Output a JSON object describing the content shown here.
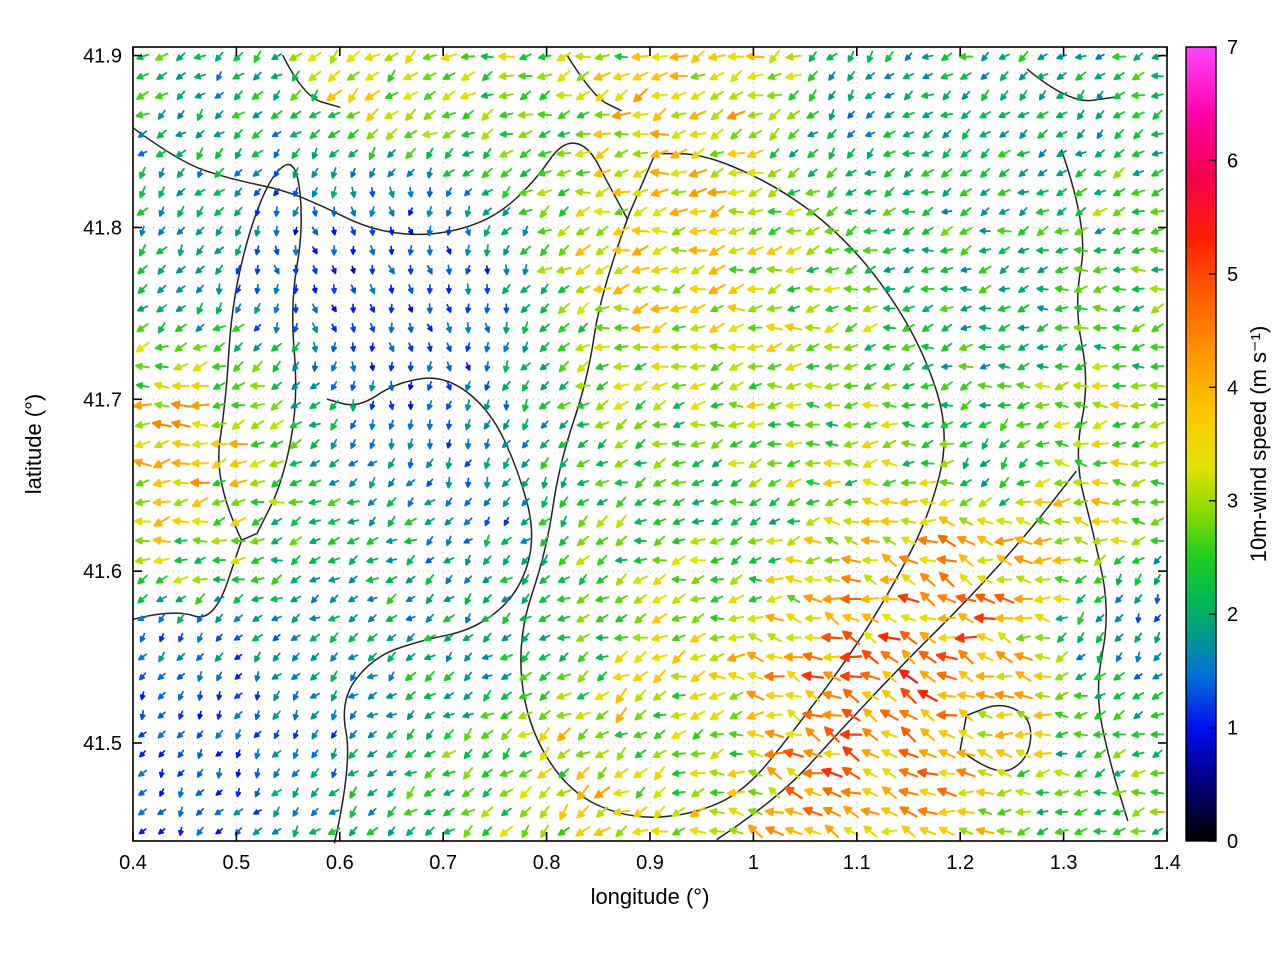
{
  "figure": {
    "background": "#ffffff"
  },
  "chart_data": {
    "type": "quiver",
    "title": "",
    "xlabel": "longitude (°)",
    "ylabel": "latitude (°)",
    "xlim": [
      0.4,
      1.4
    ],
    "ylim": [
      41.443,
      41.905
    ],
    "x_ticks": [
      0.4,
      0.5,
      0.6,
      0.7,
      0.8,
      0.9,
      1.0,
      1.1,
      1.2,
      1.3,
      1.4
    ],
    "x_tick_labels": [
      "0.4",
      "0.5",
      "0.6",
      "0.7",
      "0.8",
      "0.9",
      "1",
      "1.1",
      "1.2",
      "1.3",
      "1.4"
    ],
    "y_ticks": [
      41.5,
      41.6,
      41.7,
      41.8,
      41.9
    ],
    "y_tick_labels": [
      "41.5",
      "41.6",
      "41.7",
      "41.8",
      "41.9"
    ],
    "grid": {
      "nx": 54,
      "ny": 41
    },
    "colorbar": {
      "label": "10m-wind speed (m s⁻¹)",
      "min": 0,
      "max": 7,
      "ticks": [
        0,
        1,
        2,
        3,
        4,
        5,
        6,
        7
      ],
      "tick_labels": [
        "0",
        "1",
        "2",
        "3",
        "4",
        "5",
        "6",
        "7"
      ],
      "stops": [
        [
          0.0,
          "#000000"
        ],
        [
          0.6,
          "#000090"
        ],
        [
          1.0,
          "#0010f0"
        ],
        [
          1.45,
          "#0070d8"
        ],
        [
          1.8,
          "#009890"
        ],
        [
          2.1,
          "#00b855"
        ],
        [
          2.5,
          "#20cc20"
        ],
        [
          2.9,
          "#86dc00"
        ],
        [
          3.3,
          "#e2e200"
        ],
        [
          3.8,
          "#ffc400"
        ],
        [
          4.3,
          "#ff9400"
        ],
        [
          4.8,
          "#ff5e00"
        ],
        [
          5.3,
          "#ff2000"
        ],
        [
          5.9,
          "#f30050"
        ],
        [
          6.4,
          "#ff00a8"
        ],
        [
          7.0,
          "#ff44ff"
        ]
      ]
    },
    "field": {
      "base_speed": 2.3,
      "base_dir": 188,
      "base_weight": 0.32,
      "dir_jitter_deg": 26,
      "speed_jitter": 0.5,
      "lat_scale": 1.66,
      "blobs": [
        {
          "lon": 0.46,
          "lat": 41.675,
          "r": 0.05,
          "speed": 4.3,
          "dir": 185
        },
        {
          "lon": 0.45,
          "lat": 41.615,
          "r": 0.04,
          "speed": 3.3,
          "dir": 195
        },
        {
          "lon": 0.44,
          "lat": 41.5,
          "r": 0.085,
          "speed": 1.0,
          "dir": 250,
          "w": 1.3
        },
        {
          "lon": 0.56,
          "lat": 41.47,
          "r": 0.065,
          "speed": 1.3,
          "dir": 240
        },
        {
          "lon": 0.67,
          "lat": 41.745,
          "r": 0.085,
          "speed": 0.9,
          "dir": 295,
          "w": 1.4
        },
        {
          "lon": 0.59,
          "lat": 41.78,
          "r": 0.055,
          "speed": 1.1,
          "dir": 300
        },
        {
          "lon": 0.75,
          "lat": 41.67,
          "r": 0.065,
          "speed": 1.3,
          "dir": 265
        },
        {
          "lon": 0.72,
          "lat": 41.585,
          "r": 0.075,
          "speed": 1.8,
          "dir": 230
        },
        {
          "lon": 0.62,
          "lat": 41.62,
          "r": 0.055,
          "speed": 2.2,
          "dir": 205
        },
        {
          "lon": 0.42,
          "lat": 41.79,
          "r": 0.05,
          "speed": 1.8,
          "dir": 250
        },
        {
          "lon": 0.5,
          "lat": 41.86,
          "r": 0.055,
          "speed": 1.9,
          "dir": 235
        },
        {
          "lon": 0.62,
          "lat": 41.895,
          "r": 0.04,
          "speed": 3.9,
          "dir": 230
        },
        {
          "lon": 0.73,
          "lat": 41.87,
          "r": 0.05,
          "speed": 3.2,
          "dir": 205
        },
        {
          "lon": 0.88,
          "lat": 41.77,
          "r": 0.06,
          "speed": 4.1,
          "dir": 190
        },
        {
          "lon": 0.95,
          "lat": 41.85,
          "r": 0.07,
          "speed": 4.1,
          "dir": 205
        },
        {
          "lon": 1.0,
          "lat": 41.89,
          "r": 0.04,
          "speed": 3.6,
          "dir": 195
        },
        {
          "lon": 0.83,
          "lat": 41.7,
          "r": 0.05,
          "speed": 3.2,
          "dir": 195
        },
        {
          "lon": 0.9,
          "lat": 41.6,
          "r": 0.06,
          "speed": 3.3,
          "dir": 205
        },
        {
          "lon": 0.86,
          "lat": 41.5,
          "r": 0.06,
          "speed": 3.7,
          "dir": 220
        },
        {
          "lon": 0.78,
          "lat": 41.47,
          "r": 0.05,
          "speed": 3.5,
          "dir": 230
        },
        {
          "lon": 0.7,
          "lat": 41.48,
          "r": 0.05,
          "speed": 2.0,
          "dir": 220
        },
        {
          "lon": 0.6,
          "lat": 41.445,
          "r": 0.04,
          "speed": 3.1,
          "dir": 210
        },
        {
          "lon": 1.12,
          "lat": 41.53,
          "r": 0.09,
          "speed": 4.9,
          "dir": 150,
          "w": 1.3
        },
        {
          "lon": 1.22,
          "lat": 41.6,
          "r": 0.055,
          "speed": 4.4,
          "dir": 155
        },
        {
          "lon": 1.3,
          "lat": 41.65,
          "r": 0.05,
          "speed": 3.8,
          "dir": 165
        },
        {
          "lon": 1.03,
          "lat": 41.46,
          "r": 0.05,
          "speed": 4.6,
          "dir": 145
        },
        {
          "lon": 1.05,
          "lat": 41.7,
          "r": 0.065,
          "speed": 3.1,
          "dir": 185
        },
        {
          "lon": 1.0,
          "lat": 41.75,
          "r": 0.05,
          "speed": 3.4,
          "dir": 190
        },
        {
          "lon": 0.98,
          "lat": 41.62,
          "r": 0.05,
          "speed": 2.0,
          "dir": 210
        },
        {
          "lon": 0.95,
          "lat": 41.5,
          "r": 0.045,
          "speed": 2.2,
          "dir": 215
        },
        {
          "lon": 1.15,
          "lat": 41.79,
          "r": 0.075,
          "speed": 2.2,
          "dir": 200
        },
        {
          "lon": 1.24,
          "lat": 41.66,
          "r": 0.035,
          "speed": 1.0,
          "dir": 285
        },
        {
          "lon": 1.35,
          "lat": 41.57,
          "r": 0.04,
          "speed": 1.1,
          "dir": 270
        },
        {
          "lon": 1.08,
          "lat": 41.87,
          "r": 0.05,
          "speed": 1.3,
          "dir": 260
        },
        {
          "lon": 1.28,
          "lat": 41.86,
          "r": 0.055,
          "speed": 1.7,
          "dir": 230
        },
        {
          "lon": 1.37,
          "lat": 41.8,
          "r": 0.05,
          "speed": 2.6,
          "dir": 195
        },
        {
          "lon": 1.33,
          "lat": 41.47,
          "r": 0.05,
          "speed": 2.4,
          "dir": 200
        },
        {
          "lon": 1.36,
          "lat": 41.67,
          "r": 0.04,
          "speed": 3.0,
          "dir": 190
        },
        {
          "lon": 0.55,
          "lat": 41.7,
          "r": 0.04,
          "speed": 2.8,
          "dir": 190
        }
      ]
    },
    "contours": [
      {
        "closed": false,
        "points": [
          [
            0.4,
            41.858
          ],
          [
            0.445,
            41.838
          ],
          [
            0.495,
            41.828
          ],
          [
            0.545,
            41.822
          ],
          [
            0.585,
            41.812
          ],
          [
            0.625,
            41.8
          ],
          [
            0.67,
            41.795
          ],
          [
            0.715,
            41.798
          ],
          [
            0.755,
            41.808
          ],
          [
            0.79,
            41.828
          ],
          [
            0.815,
            41.85
          ],
          [
            0.84,
            41.848
          ],
          [
            0.86,
            41.825
          ],
          [
            0.878,
            41.805
          ]
        ]
      },
      {
        "closed": true,
        "points": [
          [
            0.505,
            41.618
          ],
          [
            0.478,
            41.652
          ],
          [
            0.49,
            41.7
          ],
          [
            0.495,
            41.752
          ],
          [
            0.512,
            41.798
          ],
          [
            0.535,
            41.832
          ],
          [
            0.558,
            41.84
          ],
          [
            0.565,
            41.8
          ],
          [
            0.552,
            41.755
          ],
          [
            0.56,
            41.7
          ],
          [
            0.545,
            41.652
          ],
          [
            0.52,
            41.622
          ]
        ]
      },
      {
        "closed": false,
        "points": [
          [
            0.4,
            41.572
          ],
          [
            0.44,
            41.578
          ],
          [
            0.478,
            41.57
          ],
          [
            0.505,
            41.618
          ]
        ]
      },
      {
        "closed": true,
        "points": [
          [
            0.88,
            41.808
          ],
          [
            0.852,
            41.762
          ],
          [
            0.84,
            41.712
          ],
          [
            0.812,
            41.662
          ],
          [
            0.8,
            41.612
          ],
          [
            0.772,
            41.562
          ],
          [
            0.78,
            41.512
          ],
          [
            0.82,
            41.472
          ],
          [
            0.878,
            41.456
          ],
          [
            0.94,
            41.458
          ],
          [
            0.992,
            41.472
          ],
          [
            1.04,
            41.508
          ],
          [
            1.09,
            41.548
          ],
          [
            1.132,
            41.588
          ],
          [
            1.17,
            41.632
          ],
          [
            1.19,
            41.68
          ],
          [
            1.165,
            41.728
          ],
          [
            1.12,
            41.772
          ],
          [
            1.068,
            41.805
          ],
          [
            1.01,
            41.828
          ],
          [
            0.95,
            41.843
          ],
          [
            0.905,
            41.843
          ]
        ]
      },
      {
        "closed": false,
        "points": [
          [
            0.595,
            41.442
          ],
          [
            0.612,
            41.488
          ],
          [
            0.6,
            41.525
          ],
          [
            0.632,
            41.55
          ],
          [
            0.68,
            41.56
          ],
          [
            0.73,
            41.566
          ],
          [
            0.772,
            41.586
          ],
          [
            0.79,
            41.62
          ],
          [
            0.772,
            41.66
          ],
          [
            0.745,
            41.694
          ],
          [
            0.702,
            41.714
          ],
          [
            0.655,
            41.71
          ],
          [
            0.618,
            41.695
          ],
          [
            0.588,
            41.7
          ]
        ]
      },
      {
        "closed": false,
        "points": [
          [
            0.965,
            41.444
          ],
          [
            1.025,
            41.468
          ],
          [
            1.085,
            41.508
          ],
          [
            1.148,
            41.548
          ],
          [
            1.21,
            41.585
          ],
          [
            1.268,
            41.624
          ],
          [
            1.312,
            41.658
          ]
        ]
      },
      {
        "closed": false,
        "points": [
          [
            1.298,
            41.845
          ],
          [
            1.324,
            41.8
          ],
          [
            1.31,
            41.755
          ],
          [
            1.325,
            41.71
          ],
          [
            1.31,
            41.665
          ],
          [
            1.33,
            41.62
          ],
          [
            1.345,
            41.575
          ],
          [
            1.33,
            41.53
          ],
          [
            1.345,
            41.488
          ],
          [
            1.362,
            41.455
          ]
        ]
      },
      {
        "closed": true,
        "points": [
          [
            1.2,
            41.496
          ],
          [
            1.234,
            41.48
          ],
          [
            1.266,
            41.49
          ],
          [
            1.27,
            41.514
          ],
          [
            1.24,
            41.524
          ],
          [
            1.206,
            41.516
          ]
        ]
      },
      {
        "closed": false,
        "points": [
          [
            0.545,
            41.9
          ],
          [
            0.565,
            41.876
          ],
          [
            0.6,
            41.87
          ]
        ]
      },
      {
        "closed": false,
        "points": [
          [
            0.82,
            41.9
          ],
          [
            0.845,
            41.876
          ],
          [
            0.872,
            41.868
          ]
        ]
      },
      {
        "closed": false,
        "points": [
          [
            1.265,
            41.892
          ],
          [
            1.305,
            41.872
          ],
          [
            1.352,
            41.876
          ]
        ]
      }
    ]
  }
}
